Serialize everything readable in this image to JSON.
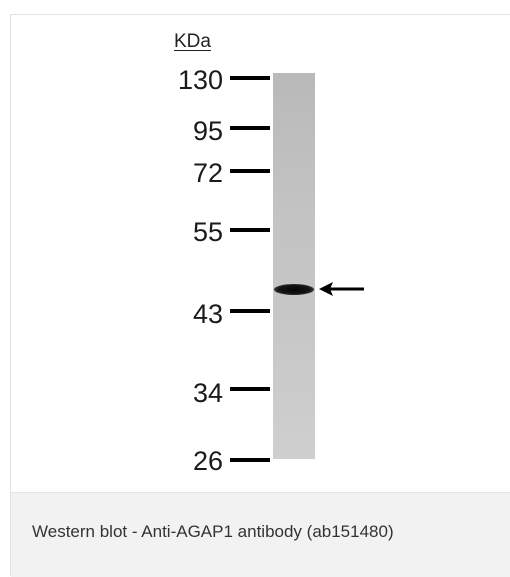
{
  "figure": {
    "unit_label": "KDa",
    "markers": [
      {
        "label": "130",
        "kda": 130
      },
      {
        "label": "95",
        "kda": 95
      },
      {
        "label": "72",
        "kda": 72
      },
      {
        "label": "55",
        "kda": 55
      },
      {
        "label": "43",
        "kda": 43
      },
      {
        "label": "34",
        "kda": 34
      },
      {
        "label": "26",
        "kda": 26
      }
    ],
    "band_indicator": "arrow-left-icon"
  },
  "caption": {
    "text": "Western blot - Anti-AGAP1 antibody (ab151480)"
  },
  "colors": {
    "caption_background": "#f2f2f2",
    "band": "#0a0a0a",
    "lane": "#c2c2c2"
  }
}
